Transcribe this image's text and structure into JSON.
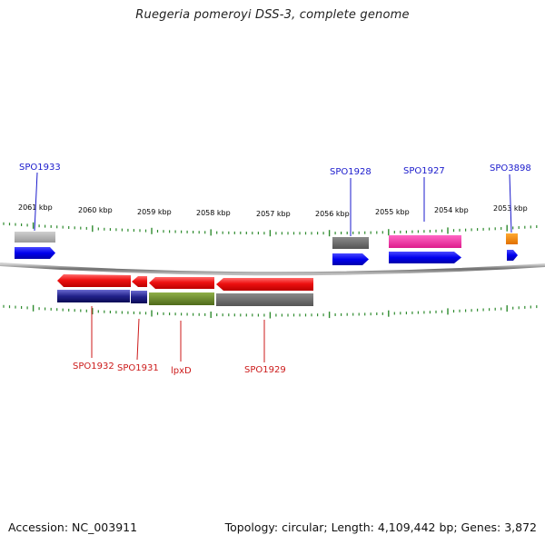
{
  "title": "Ruegeria pomeroyi DSS-3, complete genome",
  "footer": {
    "accession": "Accession: NC_003911",
    "info": "Topology: circular; Length: 4,109,442 bp; Genes: 3,872"
  },
  "colors": {
    "forward_label": "#1a1acc",
    "reverse_label": "#cc1a1a",
    "tick": "#2e8b2e",
    "backbone": "#7a7a7a"
  },
  "kbp_labels": [
    "2061 kbp",
    "2060 kbp",
    "2059 kbp",
    "2058 kbp",
    "2057 kbp",
    "2056 kbp",
    "2055 kbp",
    "2054 kbp",
    "2053 kbp"
  ],
  "genes_forward": [
    {
      "name": "SPO1933",
      "color": "gray-light"
    },
    {
      "name": "SPO1928",
      "color": "gray-dark"
    },
    {
      "name": "SPO1927",
      "color": "pink"
    },
    {
      "name": "SPO3898",
      "color": "orange"
    }
  ],
  "genes_reverse": [
    {
      "name": "SPO1932",
      "color": "navy"
    },
    {
      "name": "SPO1931",
      "color": "navy"
    },
    {
      "name": "lpxD",
      "color": "olive"
    },
    {
      "name": "SPO1929",
      "color": "gray-dark"
    }
  ]
}
